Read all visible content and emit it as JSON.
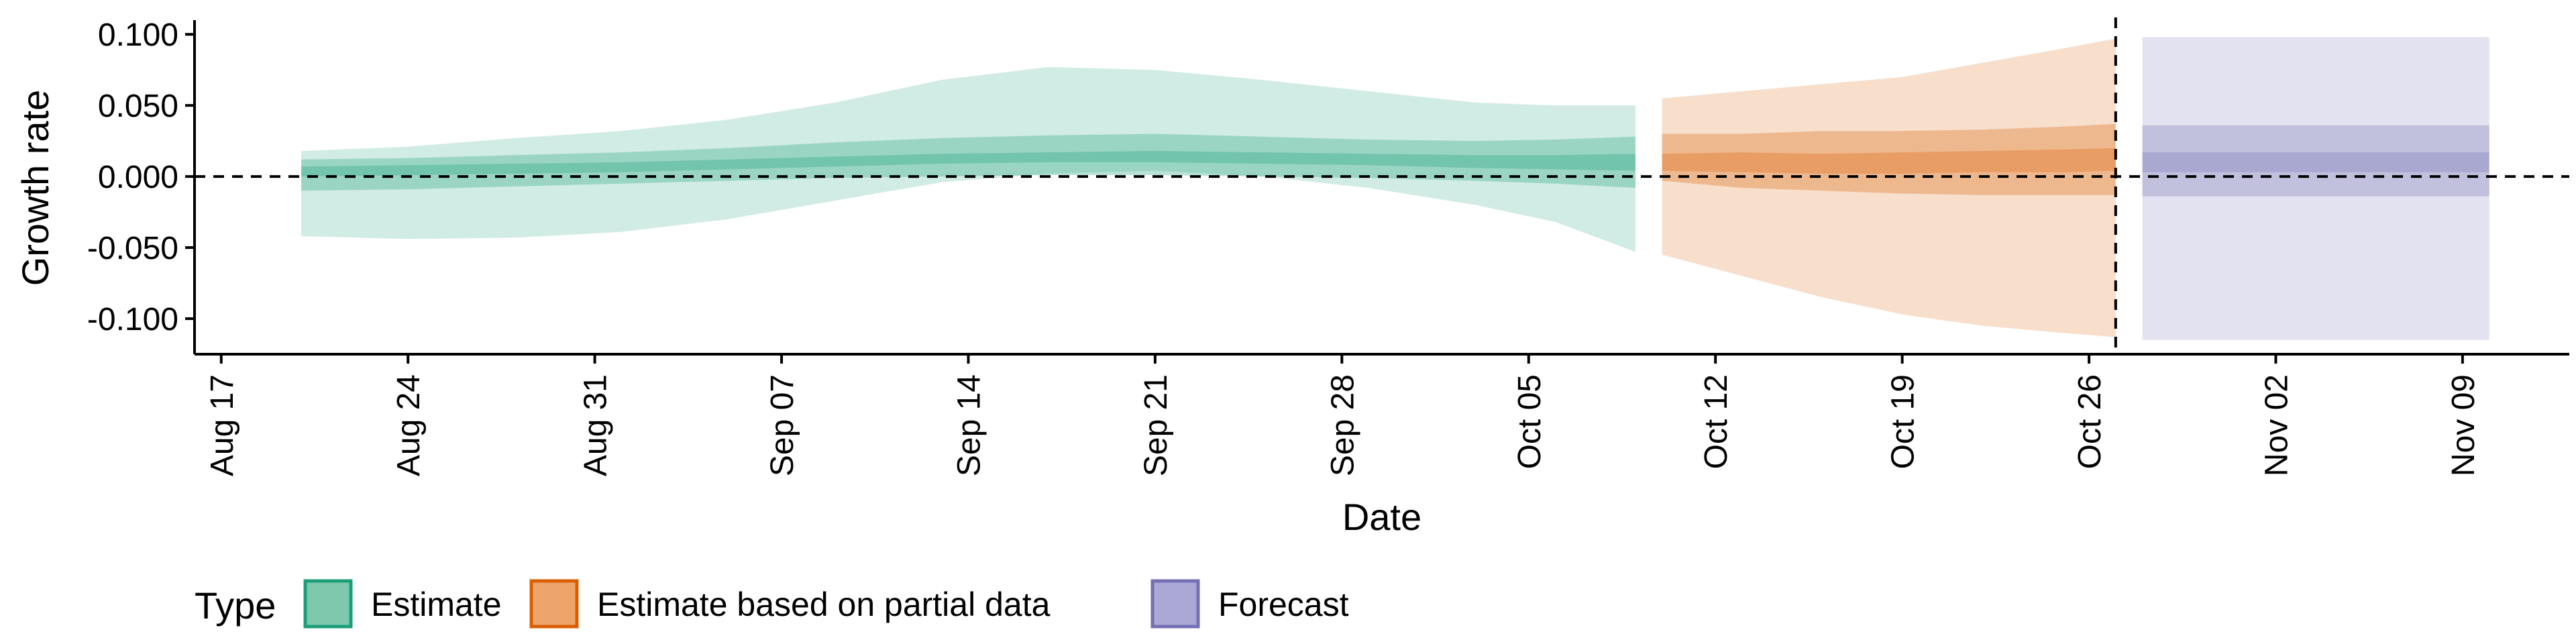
{
  "chart_data": {
    "type": "area",
    "xlabel": "Date",
    "ylabel": "Growth rate",
    "x_axis_type": "date",
    "xlim": [
      "2020-08-16",
      "2020-11-13"
    ],
    "ylim": [
      -0.125,
      0.11
    ],
    "x_ticks": [
      {
        "date": "2020-08-17",
        "label": "Aug 17"
      },
      {
        "date": "2020-08-24",
        "label": "Aug 24"
      },
      {
        "date": "2020-08-31",
        "label": "Aug 31"
      },
      {
        "date": "2020-09-07",
        "label": "Sep 07"
      },
      {
        "date": "2020-09-14",
        "label": "Sep 14"
      },
      {
        "date": "2020-09-21",
        "label": "Sep 21"
      },
      {
        "date": "2020-09-28",
        "label": "Sep 28"
      },
      {
        "date": "2020-10-05",
        "label": "Oct 05"
      },
      {
        "date": "2020-10-12",
        "label": "Oct 12"
      },
      {
        "date": "2020-10-19",
        "label": "Oct 19"
      },
      {
        "date": "2020-10-26",
        "label": "Oct 26"
      },
      {
        "date": "2020-11-02",
        "label": "Nov 02"
      },
      {
        "date": "2020-11-09",
        "label": "Nov 09"
      }
    ],
    "y_ticks": [
      {
        "value": 0.1,
        "label": "0.100"
      },
      {
        "value": 0.05,
        "label": "0.050"
      },
      {
        "value": 0.0,
        "label": "0.000"
      },
      {
        "value": -0.05,
        "label": "-0.050"
      },
      {
        "value": -0.1,
        "label": "-0.100"
      }
    ],
    "reference_lines": [
      {
        "orientation": "horizontal",
        "value": 0.0,
        "style": "dashed"
      },
      {
        "orientation": "vertical",
        "date": "2020-10-27",
        "style": "dashed"
      }
    ],
    "grid": false,
    "legend": {
      "title": "Type",
      "position": "bottom-left",
      "entries": [
        {
          "label": "Estimate",
          "fill": "#7fc8ae",
          "stroke": "#1b9e77"
        },
        {
          "label": "Estimate based on partial data",
          "fill": "#eea56c",
          "stroke": "#d95f02"
        },
        {
          "label": "Forecast",
          "fill": "#aba8d6",
          "stroke": "#7570b3"
        }
      ]
    },
    "series": [
      {
        "name": "Estimate",
        "color": "#1b9e77",
        "dates": [
          "2020-08-20",
          "2020-08-24",
          "2020-08-28",
          "2020-09-01",
          "2020-09-05",
          "2020-09-09",
          "2020-09-13",
          "2020-09-17",
          "2020-09-21",
          "2020-09-25",
          "2020-09-29",
          "2020-10-03",
          "2020-10-06",
          "2020-10-09"
        ],
        "outer_upper": [
          0.018,
          0.021,
          0.027,
          0.032,
          0.04,
          0.052,
          0.068,
          0.077,
          0.075,
          0.068,
          0.06,
          0.052,
          0.05,
          0.05
        ],
        "outer_lower": [
          -0.042,
          -0.044,
          -0.043,
          -0.039,
          -0.03,
          -0.017,
          -0.004,
          0.002,
          0.004,
          0.0,
          -0.008,
          -0.02,
          -0.032,
          -0.053
        ],
        "mid_upper": [
          0.012,
          0.013,
          0.015,
          0.017,
          0.02,
          0.024,
          0.027,
          0.029,
          0.03,
          0.028,
          0.026,
          0.025,
          0.026,
          0.028
        ],
        "mid_lower": [
          -0.01,
          -0.009,
          -0.007,
          -0.005,
          -0.003,
          -0.001,
          0.0,
          0.001,
          0.001,
          0.0,
          -0.001,
          -0.003,
          -0.005,
          -0.008
        ],
        "inner_upper": [
          0.007,
          0.008,
          0.009,
          0.01,
          0.012,
          0.014,
          0.016,
          0.017,
          0.018,
          0.017,
          0.016,
          0.015,
          0.015,
          0.016
        ],
        "inner_lower": [
          0.0,
          0.001,
          0.002,
          0.003,
          0.005,
          0.007,
          0.009,
          0.01,
          0.01,
          0.009,
          0.008,
          0.006,
          0.005,
          0.004
        ]
      },
      {
        "name": "Estimate based on partial data",
        "color": "#d95f02",
        "dates": [
          "2020-10-10",
          "2020-10-13",
          "2020-10-16",
          "2020-10-19",
          "2020-10-22",
          "2020-10-25",
          "2020-10-27"
        ],
        "outer_upper": [
          0.055,
          0.06,
          0.065,
          0.07,
          0.08,
          0.09,
          0.097
        ],
        "outer_lower": [
          -0.055,
          -0.07,
          -0.085,
          -0.097,
          -0.105,
          -0.11,
          -0.113
        ],
        "mid_upper": [
          0.03,
          0.03,
          0.032,
          0.032,
          0.033,
          0.035,
          0.037
        ],
        "mid_lower": [
          -0.003,
          -0.008,
          -0.01,
          -0.012,
          -0.013,
          -0.013,
          -0.013
        ],
        "inner_upper": [
          0.016,
          0.017,
          0.016,
          0.017,
          0.018,
          0.019,
          0.02
        ],
        "inner_lower": [
          0.004,
          0.003,
          0.002,
          0.002,
          0.003,
          0.003,
          0.004
        ]
      },
      {
        "name": "Forecast",
        "color": "#7570b3",
        "dates": [
          "2020-10-28",
          "2020-11-10"
        ],
        "outer_upper": [
          0.098,
          0.098
        ],
        "outer_lower": [
          -0.115,
          -0.115
        ],
        "mid_upper": [
          0.036,
          0.036
        ],
        "mid_lower": [
          -0.014,
          -0.014
        ],
        "inner_upper": [
          0.017,
          0.017
        ],
        "inner_lower": [
          0.003,
          0.003
        ]
      }
    ]
  }
}
